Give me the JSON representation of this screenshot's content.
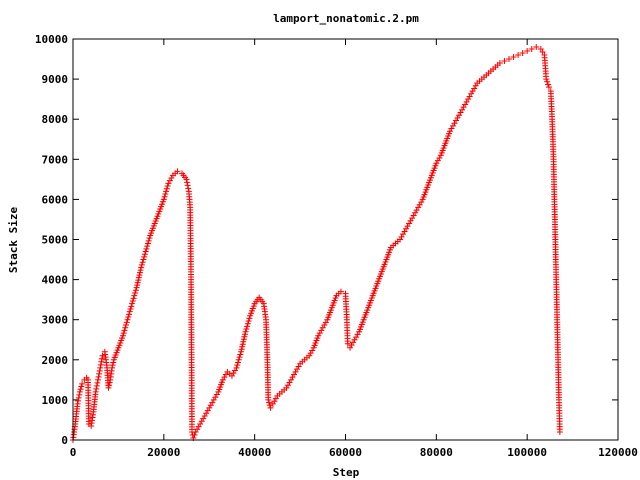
{
  "chart_data": {
    "type": "scatter",
    "title": "lamport_nonatomic.2.pm",
    "xlabel": "Step",
    "ylabel": "Stack Size",
    "xlim": [
      0,
      120000
    ],
    "ylim": [
      0,
      10000
    ],
    "x_ticks": [
      0,
      20000,
      40000,
      60000,
      80000,
      100000,
      120000
    ],
    "y_ticks": [
      0,
      1000,
      2000,
      3000,
      4000,
      5000,
      6000,
      7000,
      8000,
      9000,
      10000
    ],
    "grid": false,
    "legend": "none",
    "marker": "plus",
    "color": "#ff0000",
    "points": [
      [
        0,
        0
      ],
      [
        500,
        400
      ],
      [
        1000,
        900
      ],
      [
        1500,
        1200
      ],
      [
        2000,
        1400
      ],
      [
        2500,
        1500
      ],
      [
        3000,
        1550
      ],
      [
        3300,
        1500
      ],
      [
        3500,
        400
      ],
      [
        4000,
        350
      ],
      [
        4500,
        700
      ],
      [
        5000,
        1200
      ],
      [
        5500,
        1500
      ],
      [
        6000,
        1800
      ],
      [
        6500,
        2100
      ],
      [
        7000,
        2200
      ],
      [
        7500,
        1800
      ],
      [
        7800,
        1300
      ],
      [
        8200,
        1500
      ],
      [
        8600,
        1800
      ],
      [
        9000,
        2000
      ],
      [
        10000,
        2300
      ],
      [
        11000,
        2600
      ],
      [
        12000,
        3000
      ],
      [
        13000,
        3400
      ],
      [
        14000,
        3800
      ],
      [
        15000,
        4300
      ],
      [
        16000,
        4700
      ],
      [
        17000,
        5100
      ],
      [
        18000,
        5400
      ],
      [
        19000,
        5700
      ],
      [
        20000,
        6000
      ],
      [
        21000,
        6400
      ],
      [
        22000,
        6600
      ],
      [
        23000,
        6700
      ],
      [
        24000,
        6650
      ],
      [
        25000,
        6500
      ],
      [
        25500,
        6200
      ],
      [
        25800,
        5800
      ],
      [
        26000,
        4000
      ],
      [
        26100,
        2000
      ],
      [
        26200,
        200
      ],
      [
        26500,
        50
      ],
      [
        27000,
        200
      ],
      [
        28000,
        400
      ],
      [
        29000,
        600
      ],
      [
        30000,
        800
      ],
      [
        31000,
        1000
      ],
      [
        32000,
        1200
      ],
      [
        33000,
        1500
      ],
      [
        34000,
        1700
      ],
      [
        35000,
        1600
      ],
      [
        36000,
        1800
      ],
      [
        37000,
        2200
      ],
      [
        38000,
        2700
      ],
      [
        39000,
        3100
      ],
      [
        40000,
        3400
      ],
      [
        41000,
        3550
      ],
      [
        42000,
        3400
      ],
      [
        42500,
        3000
      ],
      [
        42800,
        2000
      ],
      [
        43000,
        1000
      ],
      [
        43500,
        800
      ],
      [
        44000,
        900
      ],
      [
        45000,
        1100
      ],
      [
        46000,
        1200
      ],
      [
        47000,
        1300
      ],
      [
        48000,
        1500
      ],
      [
        49000,
        1700
      ],
      [
        50000,
        1900
      ],
      [
        51000,
        2000
      ],
      [
        52000,
        2100
      ],
      [
        53000,
        2300
      ],
      [
        54000,
        2600
      ],
      [
        55000,
        2800
      ],
      [
        56000,
        3000
      ],
      [
        57000,
        3300
      ],
      [
        58000,
        3600
      ],
      [
        59000,
        3700
      ],
      [
        60000,
        3650
      ],
      [
        60300,
        3000
      ],
      [
        60500,
        2400
      ],
      [
        61000,
        2300
      ],
      [
        62000,
        2500
      ],
      [
        63000,
        2700
      ],
      [
        64000,
        3000
      ],
      [
        65000,
        3300
      ],
      [
        66000,
        3600
      ],
      [
        67000,
        3900
      ],
      [
        68000,
        4200
      ],
      [
        69000,
        4500
      ],
      [
        70000,
        4800
      ],
      [
        71000,
        4900
      ],
      [
        72000,
        5000
      ],
      [
        73000,
        5200
      ],
      [
        74000,
        5400
      ],
      [
        75000,
        5600
      ],
      [
        76000,
        5800
      ],
      [
        77000,
        6000
      ],
      [
        78000,
        6300
      ],
      [
        79000,
        6600
      ],
      [
        80000,
        6900
      ],
      [
        81000,
        7100
      ],
      [
        82000,
        7400
      ],
      [
        83000,
        7700
      ],
      [
        84000,
        7900
      ],
      [
        85000,
        8100
      ],
      [
        86000,
        8300
      ],
      [
        87000,
        8500
      ],
      [
        88000,
        8700
      ],
      [
        89000,
        8900
      ],
      [
        90000,
        9000
      ],
      [
        91000,
        9100
      ],
      [
        92000,
        9200
      ],
      [
        93000,
        9300
      ],
      [
        94000,
        9400
      ],
      [
        95000,
        9450
      ],
      [
        96000,
        9500
      ],
      [
        97000,
        9550
      ],
      [
        98000,
        9600
      ],
      [
        99000,
        9650
      ],
      [
        100000,
        9700
      ],
      [
        101000,
        9750
      ],
      [
        102000,
        9800
      ],
      [
        103000,
        9750
      ],
      [
        103800,
        9600
      ],
      [
        104200,
        9000
      ],
      [
        104800,
        8800
      ],
      [
        105200,
        8700
      ],
      [
        105500,
        8000
      ],
      [
        105800,
        7000
      ],
      [
        106000,
        6000
      ],
      [
        106200,
        5000
      ],
      [
        106400,
        4000
      ],
      [
        106600,
        3000
      ],
      [
        106800,
        2000
      ],
      [
        107000,
        1000
      ],
      [
        107200,
        200
      ]
    ]
  }
}
